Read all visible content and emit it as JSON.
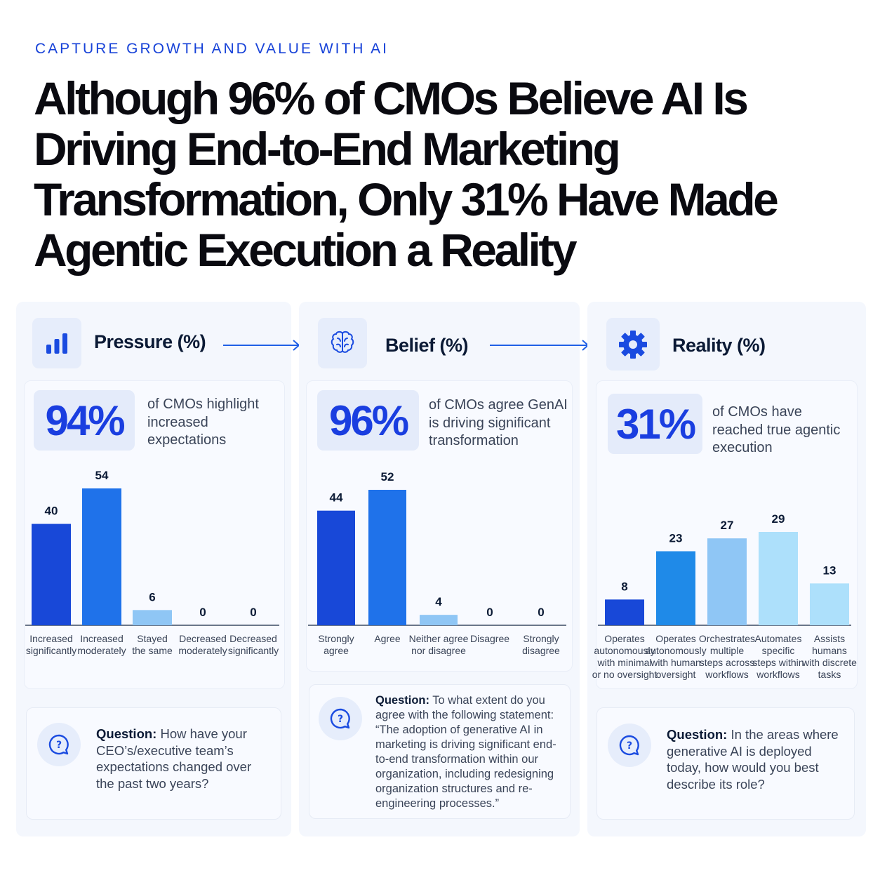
{
  "eyebrow": "CAPTURE GROWTH AND VALUE WITH AI",
  "headline": "Although 96% of CMOs Believe AI Is Driving End-to-End Marketing Transformation, Only 31% Have Made Agentic Execution a Reality",
  "icons": [
    "bar-chart-icon",
    "brain-icon",
    "gear-icon",
    "chat-question-icon",
    "arrow-right-icon"
  ],
  "colors": {
    "accent": "#1a3ee0",
    "bar_dark": "#1848d8",
    "bar_mid": "#1f72ea",
    "bar_light": "#8fc6f5",
    "bar_pale": "#ade0fb",
    "bar_sky": "#5fa8ef"
  },
  "panels": [
    {
      "title": "Pressure (%)",
      "stat": "94%",
      "stat_text": "of CMOs highlight increased expectations",
      "question_label": "Question:",
      "question": "How have your CEO’s/executive team’s expectations changed over the past two years?"
    },
    {
      "title": "Belief (%)",
      "stat": "96%",
      "stat_text": "of CMOs agree GenAI is driving significant transformation",
      "question_label": "Question:",
      "question": "To what extent do you agree with the following statement: “The adoption of generative AI in marketing is driving significant end-to-end transformation within our organization, including redesigning organization structures and re-engineering processes.”"
    },
    {
      "title": "Reality (%)",
      "stat": "31%",
      "stat_text": "of CMOs have reached true agentic execution",
      "question_label": "Question:",
      "question": "In the areas where generative AI is deployed today, how would you best describe its role?"
    }
  ],
  "chart_data": [
    {
      "type": "bar",
      "title": "Pressure (%)",
      "categories": [
        "Increased significantly",
        "Increased moderately",
        "Stayed the same",
        "Decreased moderately",
        "Decreased significantly"
      ],
      "values": [
        40,
        54,
        6,
        0,
        0
      ],
      "ylim": [
        0,
        54
      ],
      "colors": [
        "#1848d8",
        "#1f72ea",
        "#8fc6f5",
        "#8fc6f5",
        "#8fc6f5"
      ]
    },
    {
      "type": "bar",
      "title": "Belief (%)",
      "categories": [
        "Strongly agree",
        "Agree",
        "Neither agree nor disagree",
        "Disagree",
        "Strongly disagree"
      ],
      "values": [
        44,
        52,
        4,
        0,
        0
      ],
      "ylim": [
        0,
        52
      ],
      "colors": [
        "#1848d8",
        "#1f72ea",
        "#8fc6f5",
        "#8fc6f5",
        "#8fc6f5"
      ]
    },
    {
      "type": "bar",
      "title": "Reality (%)",
      "categories": [
        "Operates autonomously with minimal or no oversight",
        "Operates autonomously with human oversight",
        "Orchestrates multiple steps across workflows",
        "Automates specific steps within workflows",
        "Assists humans with discrete tasks"
      ],
      "values": [
        8,
        23,
        27,
        29,
        13
      ],
      "ylim": [
        0,
        29
      ],
      "colors": [
        "#1848d8",
        "#1f8ae8",
        "#8fc6f5",
        "#ade0fb",
        "#ade0fb"
      ]
    }
  ]
}
